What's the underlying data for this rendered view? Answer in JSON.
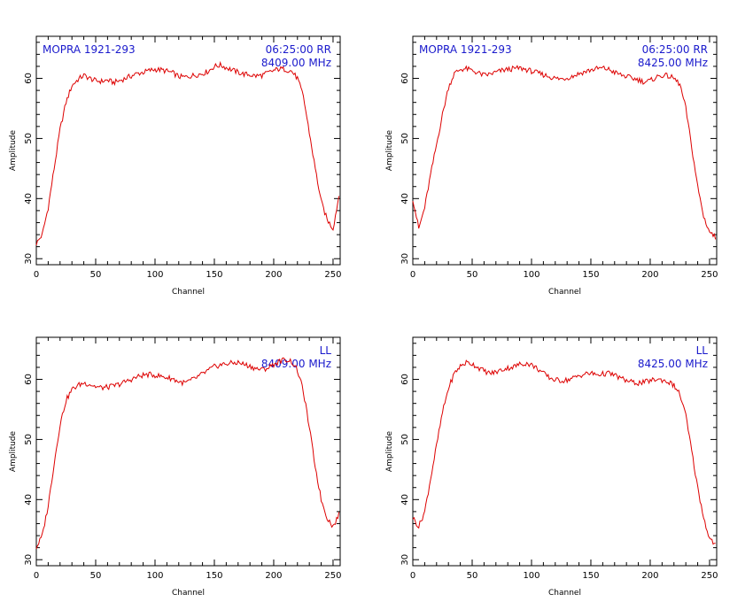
{
  "colors": {
    "trace": "#dd0000",
    "annotation": "#1a1acc",
    "frame": "#000000"
  },
  "chart_data": [
    {
      "type": "line",
      "xlabel": "Channel",
      "ylabel": "Amplitude",
      "xlim": [
        0,
        256
      ],
      "ylim": [
        29,
        67
      ],
      "xticks": [
        0,
        50,
        100,
        150,
        200,
        250
      ],
      "yticks": [
        30,
        40,
        50,
        60
      ],
      "annotation_left": "MOPRA 1921-293",
      "annotation_right": [
        "06:25:00 RR",
        "8409.00 MHz"
      ],
      "series": [
        {
          "x": [
            0,
            5,
            10,
            15,
            20,
            25,
            30,
            35,
            40,
            45,
            50,
            55,
            60,
            65,
            70,
            75,
            80,
            85,
            90,
            95,
            100,
            105,
            110,
            115,
            120,
            125,
            130,
            135,
            140,
            145,
            150,
            155,
            160,
            165,
            170,
            175,
            180,
            185,
            190,
            195,
            200,
            205,
            210,
            215,
            220,
            225,
            230,
            235,
            240,
            245,
            250,
            255
          ],
          "values": [
            32.5,
            34.0,
            38.5,
            45.0,
            51.5,
            56.0,
            58.8,
            59.8,
            60.5,
            60.0,
            59.6,
            59.5,
            59.7,
            59.3,
            59.6,
            60.0,
            60.4,
            60.8,
            61.0,
            61.3,
            61.5,
            61.4,
            61.2,
            60.9,
            60.3,
            60.2,
            60.4,
            60.6,
            60.8,
            61.2,
            62.0,
            62.2,
            61.8,
            61.4,
            61.0,
            60.7,
            60.6,
            60.4,
            60.5,
            60.9,
            61.3,
            61.6,
            61.5,
            61.2,
            60.0,
            57.0,
            51.0,
            45.0,
            39.5,
            36.5,
            35.0,
            40.5
          ]
        }
      ]
    },
    {
      "type": "line",
      "xlabel": "Channel",
      "ylabel": "Amplitude",
      "xlim": [
        0,
        256
      ],
      "ylim": [
        29,
        67
      ],
      "xticks": [
        0,
        50,
        100,
        150,
        200,
        250
      ],
      "yticks": [
        30,
        40,
        50,
        60
      ],
      "annotation_left": "MOPRA 1921-293",
      "annotation_right": [
        "06:25:00 RR",
        "8425.00 MHz"
      ],
      "series": [
        {
          "x": [
            0,
            5,
            10,
            15,
            20,
            25,
            30,
            35,
            40,
            45,
            50,
            55,
            60,
            65,
            70,
            75,
            80,
            85,
            90,
            95,
            100,
            105,
            110,
            115,
            120,
            125,
            130,
            135,
            140,
            145,
            150,
            155,
            160,
            165,
            170,
            175,
            180,
            185,
            190,
            195,
            200,
            205,
            210,
            215,
            220,
            225,
            230,
            235,
            240,
            245,
            250,
            255
          ],
          "values": [
            40.0,
            35.0,
            38.5,
            44.0,
            49.0,
            54.0,
            58.5,
            60.8,
            61.5,
            61.6,
            61.3,
            60.9,
            60.5,
            60.7,
            61.0,
            61.3,
            61.5,
            61.6,
            61.7,
            61.5,
            61.2,
            60.9,
            60.6,
            60.3,
            60.0,
            59.9,
            60.1,
            60.4,
            60.8,
            61.1,
            61.4,
            61.6,
            61.7,
            61.5,
            61.0,
            60.6,
            60.3,
            60.0,
            59.8,
            59.4,
            59.6,
            60.2,
            60.5,
            60.4,
            60.0,
            59.0,
            55.0,
            48.5,
            42.0,
            37.0,
            34.5,
            33.5
          ]
        }
      ]
    },
    {
      "type": "line",
      "xlabel": "Channel",
      "ylabel": "Amplitude",
      "xlim": [
        0,
        256
      ],
      "ylim": [
        29,
        67
      ],
      "xticks": [
        0,
        50,
        100,
        150,
        200,
        250
      ],
      "yticks": [
        30,
        40,
        50,
        60
      ],
      "annotation_left": "",
      "annotation_right": [
        "LL",
        "8409.00 MHz"
      ],
      "series": [
        {
          "x": [
            0,
            5,
            10,
            15,
            20,
            25,
            30,
            35,
            40,
            45,
            50,
            55,
            60,
            65,
            70,
            75,
            80,
            85,
            90,
            95,
            100,
            105,
            110,
            115,
            120,
            125,
            130,
            135,
            140,
            145,
            150,
            155,
            160,
            165,
            170,
            175,
            180,
            185,
            190,
            195,
            200,
            205,
            210,
            215,
            220,
            225,
            230,
            235,
            240,
            245,
            250,
            255
          ],
          "values": [
            32.0,
            34.0,
            39.0,
            46.0,
            52.5,
            56.5,
            58.3,
            59.0,
            59.4,
            59.2,
            58.8,
            58.6,
            58.7,
            58.9,
            59.2,
            59.6,
            60.0,
            60.4,
            60.7,
            60.8,
            60.7,
            60.5,
            60.3,
            60.1,
            59.6,
            59.4,
            59.8,
            60.3,
            60.9,
            61.5,
            62.1,
            62.4,
            62.6,
            62.7,
            62.8,
            62.5,
            62.2,
            61.8,
            61.6,
            61.9,
            62.5,
            63.0,
            63.3,
            63.0,
            61.5,
            58.0,
            52.0,
            45.5,
            40.0,
            37.0,
            35.5,
            37.5
          ]
        }
      ]
    },
    {
      "type": "line",
      "xlabel": "Channel",
      "ylabel": "Amplitude",
      "xlim": [
        0,
        256
      ],
      "ylim": [
        29,
        67
      ],
      "xticks": [
        0,
        50,
        100,
        150,
        200,
        250
      ],
      "yticks": [
        30,
        40,
        50,
        60
      ],
      "annotation_left": "",
      "annotation_right": [
        "LL",
        "8425.00 MHz"
      ],
      "series": [
        {
          "x": [
            0,
            5,
            10,
            15,
            20,
            25,
            30,
            35,
            40,
            45,
            50,
            55,
            60,
            65,
            70,
            75,
            80,
            85,
            90,
            95,
            100,
            105,
            110,
            115,
            120,
            125,
            130,
            135,
            140,
            145,
            150,
            155,
            160,
            165,
            170,
            175,
            180,
            185,
            190,
            195,
            200,
            205,
            210,
            215,
            220,
            225,
            230,
            235,
            240,
            245,
            250,
            255
          ],
          "values": [
            37.0,
            35.5,
            38.0,
            43.5,
            49.0,
            54.5,
            58.5,
            61.0,
            62.2,
            62.8,
            62.6,
            62.0,
            61.4,
            61.0,
            61.2,
            61.6,
            61.9,
            62.1,
            62.5,
            62.7,
            62.4,
            61.8,
            61.0,
            60.3,
            59.9,
            59.8,
            59.9,
            60.2,
            60.6,
            60.9,
            61.0,
            60.8,
            60.9,
            61.0,
            60.7,
            60.2,
            59.8,
            59.5,
            59.4,
            59.5,
            59.8,
            60.0,
            59.9,
            59.6,
            59.0,
            57.5,
            54.0,
            48.0,
            42.0,
            37.0,
            33.5,
            32.5
          ]
        }
      ]
    }
  ]
}
